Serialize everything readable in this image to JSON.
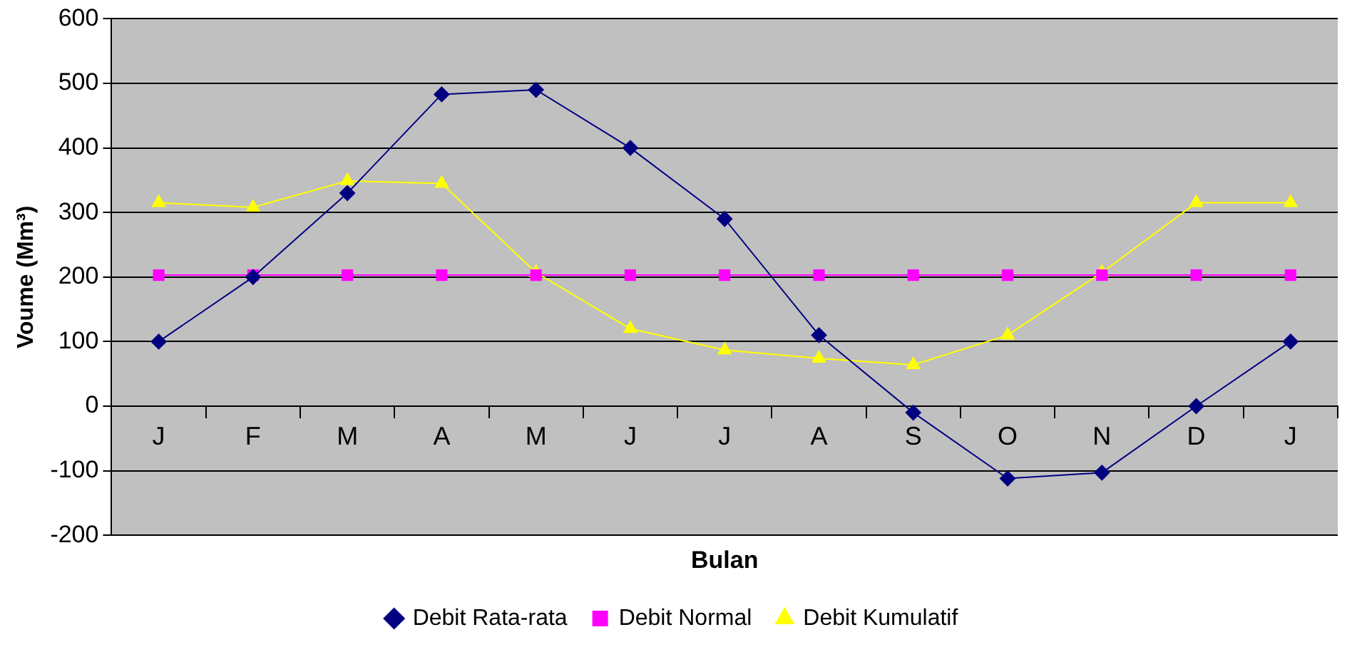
{
  "chart_data": {
    "type": "line",
    "xlabel": "Bulan",
    "ylabel": "Voume (Mm³)",
    "categories": [
      "J",
      "F",
      "M",
      "A",
      "M",
      "J",
      "J",
      "A",
      "S",
      "O",
      "N",
      "D",
      "J"
    ],
    "series": [
      {
        "name": "Debit Rata-rata",
        "color": "#000080",
        "marker": "diamond",
        "values": [
          100,
          200,
          330,
          483,
          490,
          400,
          290,
          110,
          -10,
          -112,
          -103,
          0,
          100
        ]
      },
      {
        "name": "Debit Normal",
        "color": "#ff00ff",
        "marker": "square",
        "values": [
          203,
          203,
          203,
          203,
          203,
          203,
          203,
          203,
          203,
          203,
          203,
          203,
          203
        ]
      },
      {
        "name": "Debit Kumulatif",
        "color": "#ffff00",
        "marker": "triangle",
        "values": [
          315,
          308,
          349,
          345,
          207,
          120,
          87,
          74,
          64,
          110,
          207,
          315,
          315
        ]
      }
    ],
    "ylim": [
      -200,
      600
    ],
    "yticks": [
      -200,
      -100,
      0,
      100,
      200,
      300,
      400,
      500,
      600
    ],
    "grid": "y",
    "legend": "bottom",
    "line_style": "solid"
  }
}
